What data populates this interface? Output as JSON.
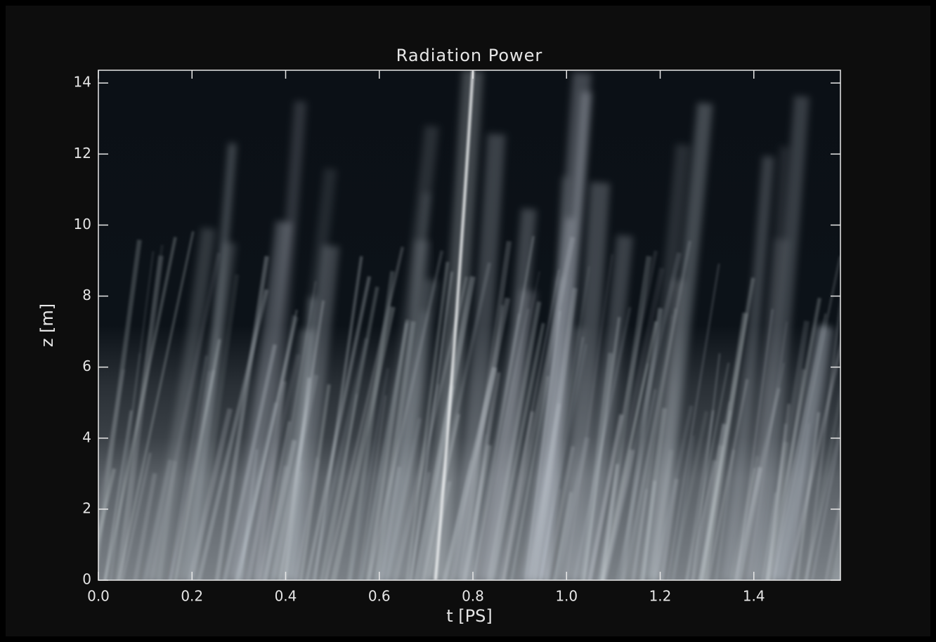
{
  "chart_data": {
    "type": "heatmap",
    "title": "Radiation Power",
    "xlabel": "t [PS]",
    "ylabel": "z [m]",
    "xlim": [
      0,
      1.585
    ],
    "ylim": [
      0,
      14.36
    ],
    "xticks": [
      {
        "value": 0,
        "label": "0.0"
      },
      {
        "value": 0.2,
        "label": "0.2"
      },
      {
        "value": 0.4,
        "label": "0.4"
      },
      {
        "value": 0.6,
        "label": "0.6"
      },
      {
        "value": 0.8,
        "label": "0.8"
      },
      {
        "value": 1.0,
        "label": "1.0"
      },
      {
        "value": 1.2,
        "label": "1.2"
      },
      {
        "value": 1.4,
        "label": "1.4"
      }
    ],
    "yticks": [
      0,
      2,
      4,
      6,
      8,
      10,
      12,
      14
    ]
  }
}
